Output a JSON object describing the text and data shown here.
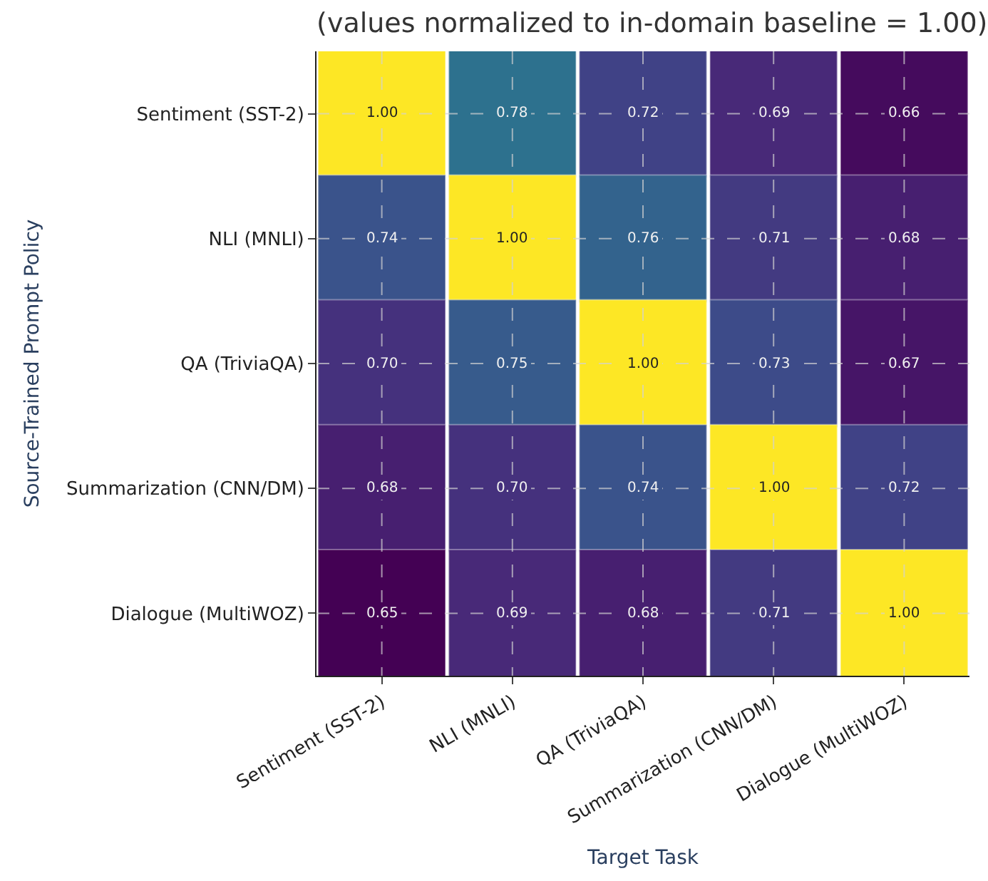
{
  "chart_data": {
    "type": "heatmap",
    "title": "(values normalized to in-domain baseline = 1.00)",
    "xlabel": "Target Task",
    "ylabel": "Source-Trained Prompt Policy",
    "categories": [
      "Sentiment (SST-2)",
      "NLI (MNLI)",
      "QA (TriviaQA)",
      "Summarization (CNN/DM)",
      "Dialogue (MultiWOZ)"
    ],
    "y_categories": [
      "Sentiment (SST-2)",
      "NLI (MNLI)",
      "QA (TriviaQA)",
      "Summarization (CNN/DM)",
      "Dialogue (MultiWOZ)"
    ],
    "cells": [
      [
        1.0,
        0.78,
        0.72,
        0.69,
        0.66
      ],
      [
        0.74,
        1.0,
        0.76,
        0.71,
        0.68
      ],
      [
        0.7,
        0.75,
        1.0,
        0.73,
        0.67
      ],
      [
        0.68,
        0.7,
        0.74,
        1.0,
        0.72
      ],
      [
        0.65,
        0.69,
        0.68,
        0.71,
        1.0
      ]
    ],
    "cell_labels": [
      [
        "1.00",
        "0.78",
        "0.72",
        "0.69",
        "0.66"
      ],
      [
        "0.74",
        "1.00",
        "0.76",
        "0.71",
        "0.68"
      ],
      [
        "0.70",
        "0.75",
        "1.00",
        "0.73",
        "0.67"
      ],
      [
        "0.68",
        "0.70",
        "0.74",
        "1.00",
        "0.72"
      ],
      [
        "0.65",
        "0.69",
        "0.68",
        "0.71",
        "1.00"
      ]
    ],
    "grid": true
  }
}
